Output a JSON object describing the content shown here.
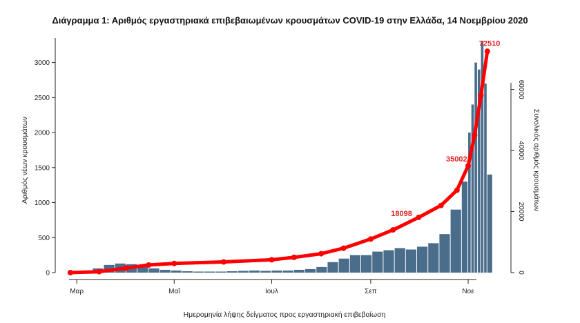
{
  "chart_data": {
    "type": "bar",
    "title": "Διάγραμμα 1: Αριθμός εργαστηριακά επιβεβαιωμένων κρουσμάτων COVID-19 στην Ελλάδα, 14 Νοεμβρίου 2020",
    "xlabel": "Ημερομηνία λήψης δείγματος προς εργαστηριακή επιβεβαίωση",
    "ylabel": "Αριθμός νέων κρουσμάτων",
    "y2label": "Συνολικός αριθμός κρουσμάτων",
    "x_tick_labels": [
      "Μαρ",
      "Μαΐ",
      "Ιουλ",
      "Σεπ",
      "Νοε"
    ],
    "y_ticks": [
      0,
      500,
      1000,
      1500,
      2000,
      2500,
      3000
    ],
    "y2_ticks": [
      0,
      20000,
      40000,
      60000
    ],
    "ylim": [
      0,
      3400
    ],
    "y2lim": [
      0,
      78000
    ],
    "colors": {
      "bars": "#4a6d8c",
      "cumulative": "#ff0000",
      "label": "#e02020",
      "axis": "#222222"
    },
    "series": [
      {
        "type": "bar",
        "name_note": "daily new cases, weekly averages read from bars",
        "x": [
          "2020-02-26",
          "2020-03-04",
          "2020-03-11",
          "2020-03-18",
          "2020-03-25",
          "2020-04-01",
          "2020-04-08",
          "2020-04-15",
          "2020-04-22",
          "2020-04-29",
          "2020-05-06",
          "2020-05-13",
          "2020-05-20",
          "2020-05-27",
          "2020-06-03",
          "2020-06-10",
          "2020-06-17",
          "2020-06-24",
          "2020-07-01",
          "2020-07-08",
          "2020-07-15",
          "2020-07-22",
          "2020-07-29",
          "2020-08-05",
          "2020-08-12",
          "2020-08-19",
          "2020-08-26",
          "2020-09-02",
          "2020-09-09",
          "2020-09-16",
          "2020-09-23",
          "2020-09-30",
          "2020-10-07",
          "2020-10-14",
          "2020-10-21",
          "2020-10-28",
          "2020-11-01",
          "2020-11-03",
          "2020-11-05",
          "2020-11-07",
          "2020-11-09",
          "2020-11-11",
          "2020-11-13"
        ],
        "values": [
          5,
          30,
          60,
          110,
          130,
          120,
          90,
          60,
          40,
          30,
          20,
          15,
          15,
          15,
          20,
          25,
          30,
          25,
          30,
          30,
          40,
          50,
          80,
          150,
          200,
          250,
          250,
          300,
          320,
          350,
          330,
          370,
          420,
          550,
          900,
          1300,
          2000,
          2400,
          3000,
          2900,
          3300,
          2700,
          1400
        ]
      },
      {
        "type": "line",
        "name_note": "cumulative cases, right axis",
        "x": [
          "2020-02-26",
          "2020-03-15",
          "2020-04-01",
          "2020-04-15",
          "2020-05-01",
          "2020-06-01",
          "2020-07-01",
          "2020-07-15",
          "2020-08-01",
          "2020-08-15",
          "2020-09-01",
          "2020-09-15",
          "2020-10-01",
          "2020-10-15",
          "2020-10-25",
          "2020-11-01",
          "2020-11-05",
          "2020-11-09",
          "2020-11-13"
        ],
        "values": [
          0,
          300,
          1500,
          2500,
          3000,
          3500,
          4200,
          5000,
          6200,
          8000,
          11000,
          14000,
          18098,
          22000,
          27000,
          35000,
          45000,
          58000,
          72510
        ]
      }
    ],
    "annotations": [
      {
        "text": "18098",
        "x": "2020-10-01",
        "y": 18098
      },
      {
        "text": "35002",
        "x": "2020-11-01",
        "y": 35002
      },
      {
        "text": "72510",
        "x": "2020-11-13",
        "y": 72510
      }
    ]
  }
}
